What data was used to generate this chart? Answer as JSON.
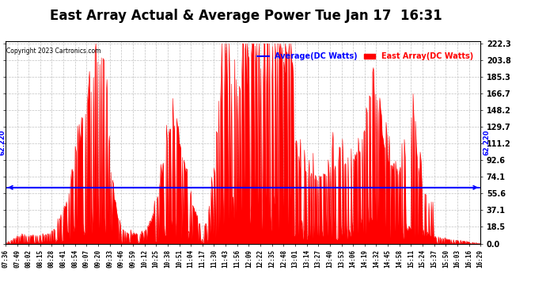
{
  "title": "East Array Actual & Average Power Tue Jan 17  16:31",
  "copyright": "Copyright 2023 Cartronics.com",
  "legend_avg": "Average(DC Watts)",
  "legend_east": "East Array(DC Watts)",
  "avg_value": 62.22,
  "ymin": 0.0,
  "ymax": 222.3,
  "yticks": [
    0.0,
    18.5,
    37.1,
    55.6,
    74.1,
    92.6,
    111.2,
    129.7,
    148.2,
    166.7,
    185.3,
    203.8,
    222.3
  ],
  "fill_color": "#FF0000",
  "avg_line_color": "#0000FF",
  "background_color": "#FFFFFF",
  "grid_color": "#BBBBBB",
  "title_fontsize": 12,
  "xtick_labels": [
    "07:36",
    "07:49",
    "08:02",
    "08:15",
    "08:28",
    "08:41",
    "08:54",
    "09:07",
    "09:20",
    "09:33",
    "09:46",
    "09:59",
    "10:12",
    "10:25",
    "10:38",
    "10:51",
    "11:04",
    "11:17",
    "11:30",
    "11:43",
    "11:56",
    "12:09",
    "12:22",
    "12:35",
    "12:48",
    "13:01",
    "13:14",
    "13:27",
    "13:40",
    "13:53",
    "14:06",
    "14:19",
    "14:32",
    "14:45",
    "14:58",
    "15:11",
    "15:24",
    "15:37",
    "15:50",
    "16:03",
    "16:16",
    "16:29"
  ],
  "n_points": 600
}
